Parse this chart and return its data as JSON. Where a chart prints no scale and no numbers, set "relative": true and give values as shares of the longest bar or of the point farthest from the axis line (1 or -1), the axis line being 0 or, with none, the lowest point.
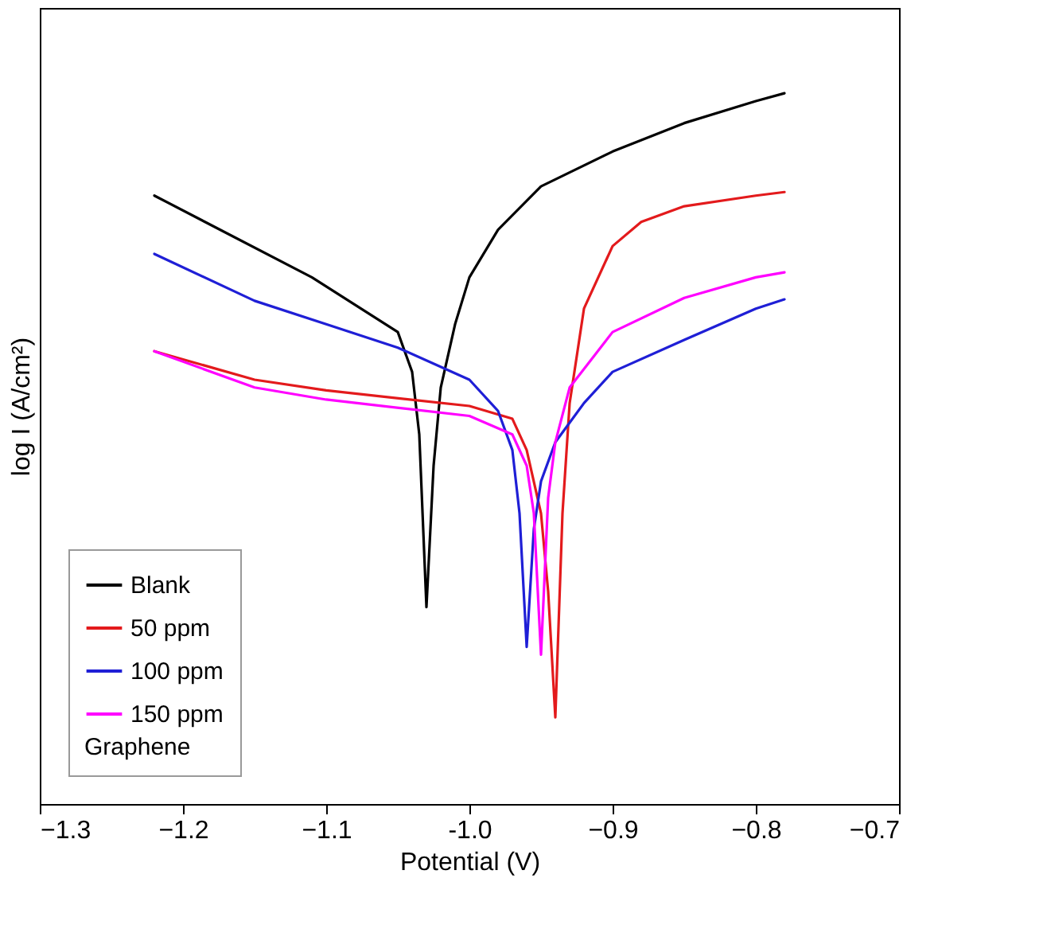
{
  "chart_data": {
    "type": "line",
    "relative": true,
    "xlabel": "Potential (V)",
    "ylabel": "log I (A/cm²)",
    "legend_title": "Graphene",
    "legend": "bottom left",
    "grid": false,
    "line_style": "solid",
    "marker": "none",
    "xlim": [
      -1.3,
      -0.7
    ],
    "xticks": [
      -1.3,
      -1.2,
      -1.1,
      {
        "value": -1.0,
        "label": "-1.0"
      },
      -0.9,
      -0.8,
      -0.7
    ],
    "series": [
      {
        "name": "Blank",
        "color": "#000000",
        "x": [
          -1.22,
          -1.11,
          -1.05,
          -1.04,
          -1.035,
          -1.03,
          -1.025,
          -1.02,
          -1.01,
          -1.0,
          -0.98,
          -0.95,
          -0.9,
          -0.85,
          -0.8,
          -0.78
        ],
        "values": [
          0.856,
          0.741,
          0.664,
          0.608,
          0.52,
          0.277,
          0.476,
          0.586,
          0.675,
          0.741,
          0.808,
          0.869,
          0.918,
          0.958,
          0.989,
          1.0
        ]
      },
      {
        "name": "50 ppm",
        "color": "#e31a1c",
        "x": [
          -1.22,
          -1.15,
          -1.1,
          -1.0,
          -0.97,
          -0.96,
          -0.95,
          -0.945,
          -0.94,
          -0.935,
          -0.93,
          -0.92,
          -0.9,
          -0.88,
          -0.85,
          -0.8,
          -0.78
        ],
        "values": [
          0.637,
          0.597,
          0.582,
          0.56,
          0.542,
          0.498,
          0.409,
          0.299,
          0.122,
          0.409,
          0.564,
          0.697,
          0.785,
          0.819,
          0.841,
          0.856,
          0.861
        ]
      },
      {
        "name": "100 ppm",
        "color": "#1f1fd6",
        "x": [
          -1.22,
          -1.15,
          -1.1,
          -1.05,
          -1.0,
          -0.98,
          -0.97,
          -0.965,
          -0.96,
          -0.955,
          -0.95,
          -0.94,
          -0.92,
          -0.9,
          -0.85,
          -0.8,
          -0.78
        ],
        "values": [
          0.774,
          0.708,
          0.675,
          0.642,
          0.597,
          0.553,
          0.498,
          0.409,
          0.221,
          0.387,
          0.454,
          0.509,
          0.564,
          0.608,
          0.653,
          0.697,
          0.71
        ]
      },
      {
        "name": "150 ppm",
        "color": "#ff00ff",
        "x": [
          -1.22,
          -1.15,
          -1.1,
          -1.0,
          -0.97,
          -0.96,
          -0.955,
          -0.95,
          -0.945,
          -0.94,
          -0.93,
          -0.9,
          -0.85,
          -0.8,
          -0.78
        ],
        "values": [
          0.637,
          0.586,
          0.569,
          0.546,
          0.52,
          0.476,
          0.409,
          0.21,
          0.431,
          0.509,
          0.586,
          0.664,
          0.712,
          0.741,
          0.748
        ]
      }
    ]
  }
}
